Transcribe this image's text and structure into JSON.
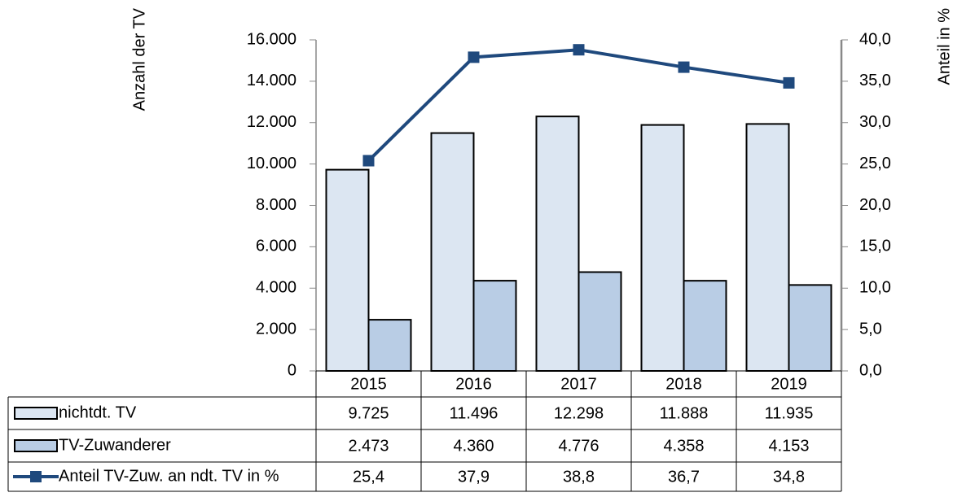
{
  "chart_data": {
    "type": "bar",
    "y_label": "Anzahl der TV",
    "y2_label": "Anteil in %",
    "categories": [
      "2015",
      "2016",
      "2017",
      "2018",
      "2019"
    ],
    "series": [
      {
        "name": "nichtdt. TV",
        "type": "bar",
        "color": "#dce6f2",
        "values": [
          9725,
          11496,
          12298,
          11888,
          11935
        ],
        "value_labels": [
          "9.725",
          "11.496",
          "12.298",
          "11.888",
          "11.935"
        ]
      },
      {
        "name": "TV-Zuwanderer",
        "type": "bar",
        "color": "#b9cde5",
        "values": [
          2473,
          4360,
          4776,
          4358,
          4153
        ],
        "value_labels": [
          "2.473",
          "4.360",
          "4.776",
          "4.358",
          "4.153"
        ]
      },
      {
        "name": "Anteil TV-Zuw. an  ndt. TV in %",
        "type": "line",
        "axis": "y2",
        "color": "#1f497d",
        "values": [
          25.4,
          37.9,
          38.8,
          36.7,
          34.8
        ],
        "value_labels": [
          "25,4",
          "37,9",
          "38,8",
          "36,7",
          "34,8"
        ]
      }
    ],
    "ylim": [
      0,
      16000
    ],
    "yticks": [
      0,
      {
        "value": 2000,
        "label": "2.000"
      },
      {
        "value": 4000,
        "label": "4.000"
      },
      {
        "value": 6000,
        "label": "6.000"
      },
      {
        "value": 8000,
        "label": "8.000"
      },
      {
        "value": 10000,
        "label": "10.000"
      },
      {
        "value": 12000,
        "label": "12.000"
      },
      {
        "value": 14000,
        "label": "14.000"
      },
      {
        "value": 16000,
        "label": "16.000"
      }
    ],
    "y2lim": [
      0,
      40
    ],
    "y2ticks": [
      {
        "value": 0,
        "label": "0,0"
      },
      {
        "value": 5,
        "label": "5,0"
      },
      {
        "value": 10,
        "label": "10,0"
      },
      {
        "value": 15,
        "label": "15,0"
      },
      {
        "value": 20,
        "label": "20,0"
      },
      {
        "value": 25,
        "label": "25,0"
      },
      {
        "value": 30,
        "label": "30,0"
      },
      {
        "value": 35,
        "label": "35,0"
      },
      {
        "value": 40,
        "label": "40,0"
      }
    ]
  }
}
